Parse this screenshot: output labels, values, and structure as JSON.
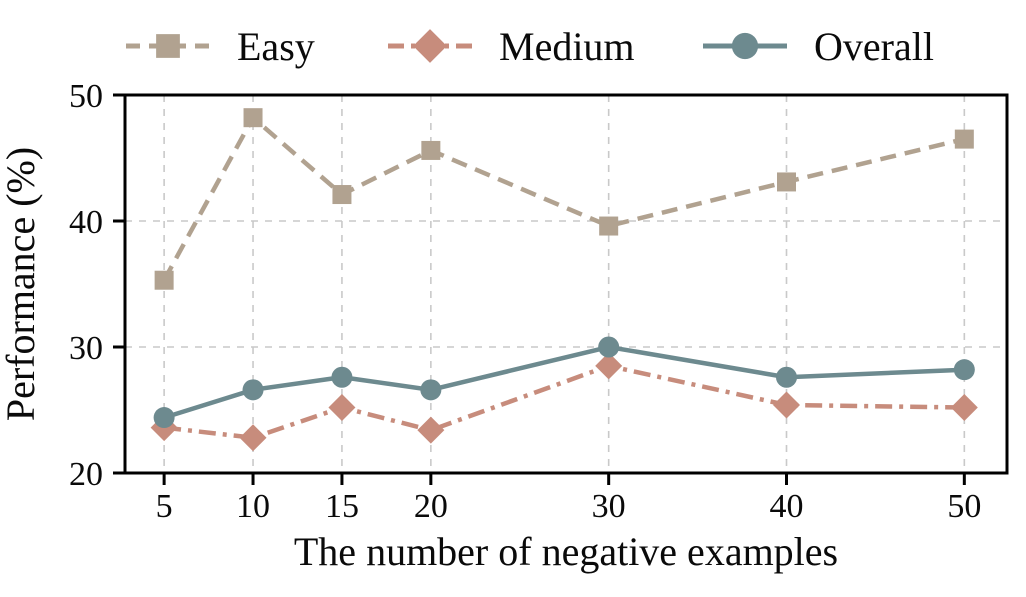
{
  "chart_data": {
    "type": "line",
    "x": [
      5,
      10,
      15,
      20,
      30,
      40,
      50
    ],
    "series": [
      {
        "name": "Easy",
        "values": [
          35.3,
          48.2,
          42.1,
          45.6,
          39.6,
          43.1,
          46.5
        ],
        "color": "#b1a290",
        "line_style": "dashed",
        "marker": "square"
      },
      {
        "name": "Medium",
        "values": [
          23.6,
          22.8,
          25.2,
          23.4,
          28.5,
          25.4,
          25.2
        ],
        "color": "#c78c7c",
        "line_style": "dashdot",
        "marker": "diamond"
      },
      {
        "name": "Overall",
        "values": [
          24.4,
          26.6,
          27.6,
          26.6,
          30.0,
          27.6,
          28.2
        ],
        "color": "#6d8a8f",
        "line_style": "solid",
        "marker": "circle"
      }
    ],
    "xlabel": "The number of negative examples",
    "ylabel": "Performance (%)",
    "xticks": [
      "5",
      "10",
      "15",
      "20",
      "30",
      "40",
      "50"
    ],
    "yticks": [
      "20",
      "30",
      "40",
      "50"
    ],
    "xlim": [
      2.8,
      52.4
    ],
    "ylim": [
      20,
      50
    ],
    "grid": true,
    "legend_position": "top",
    "colors": {
      "grid": "#c9c9c9",
      "axis": "#000000",
      "background": "#ffffff"
    }
  }
}
